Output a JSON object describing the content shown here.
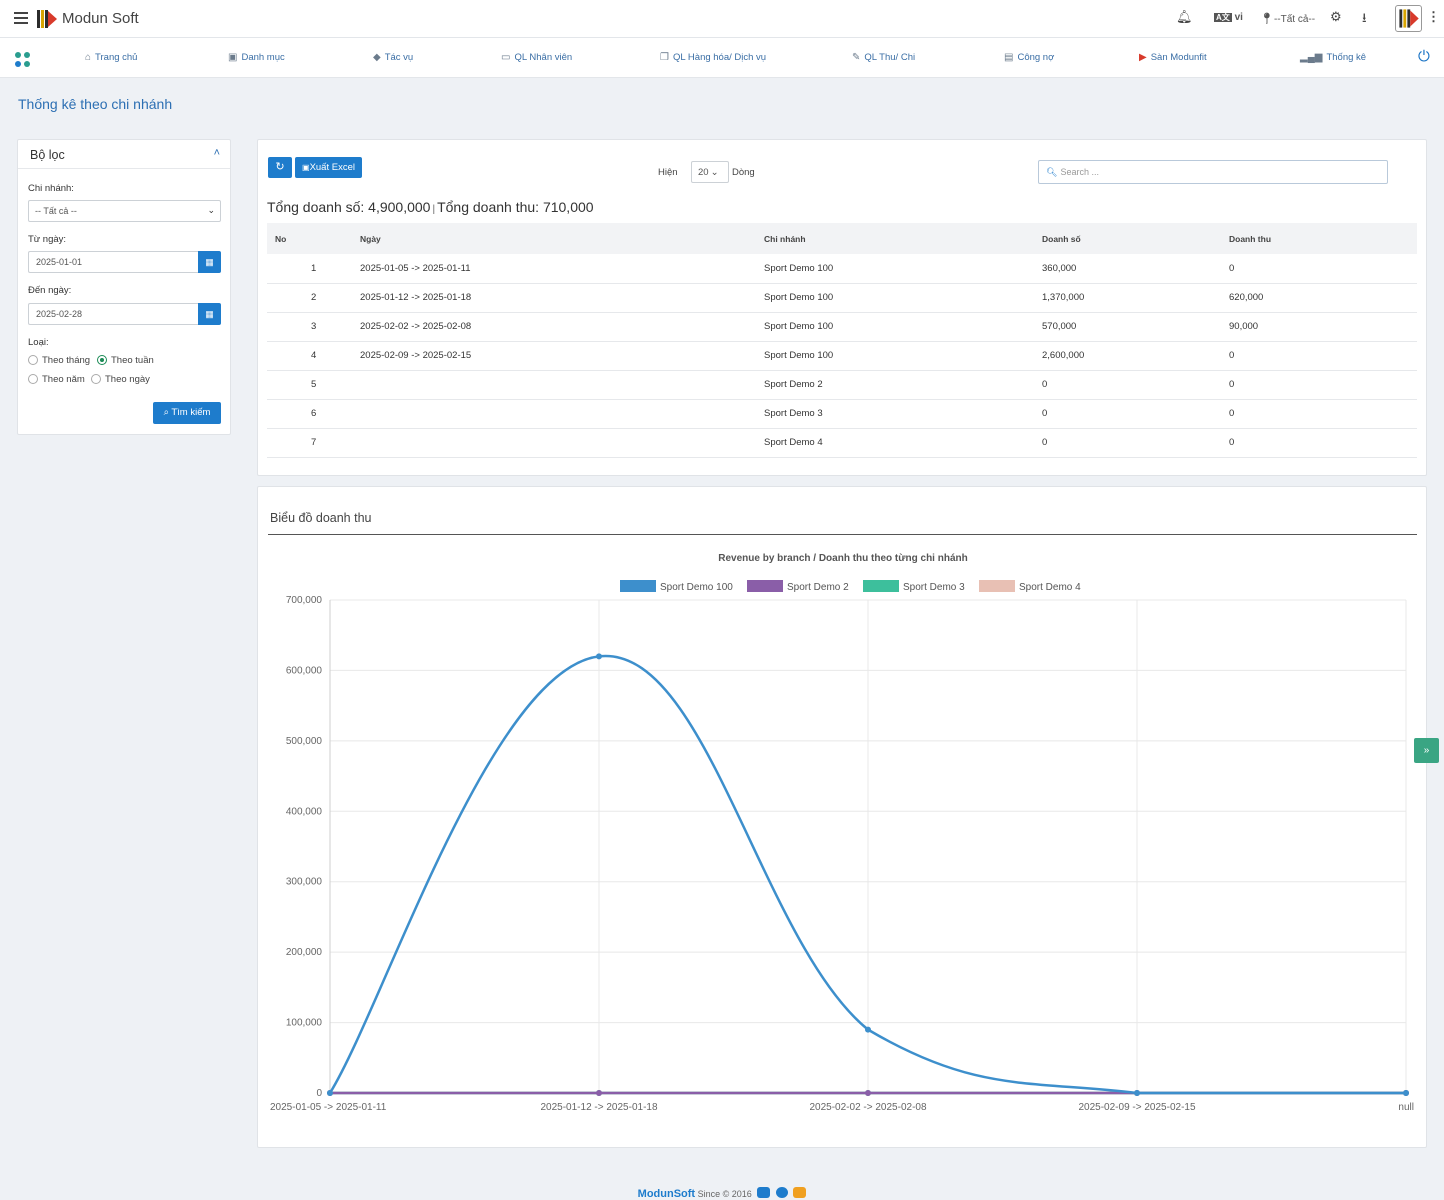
{
  "app": {
    "brand": "Modun Soft"
  },
  "topbar": {
    "lang": "vi",
    "location": "--Tất cả--"
  },
  "nav": [
    {
      "icon": "home-icon",
      "label": "Trang chủ"
    },
    {
      "icon": "cube-icon",
      "label": "Danh mục"
    },
    {
      "icon": "tag-icon",
      "label": "Tác vụ"
    },
    {
      "icon": "monitor-icon",
      "label": "QL Nhân viên"
    },
    {
      "icon": "copy-icon",
      "label": "QL Hàng hóa/ Dịch vụ"
    },
    {
      "icon": "edit-icon",
      "label": "QL Thu/ Chi"
    },
    {
      "icon": "money-icon",
      "label": "Công nợ"
    },
    {
      "icon": "modunfit-icon",
      "label": "Sàn Modunfit"
    },
    {
      "icon": "signal-icon",
      "label": "Thống kê"
    }
  ],
  "page": {
    "title": "Thống kê theo chi nhánh"
  },
  "filter": {
    "title": "Bộ lọc",
    "branch_label": "Chi nhánh:",
    "branch_value": "-- Tất cả --",
    "from_label": "Từ ngày:",
    "from_value": "2025-01-01",
    "to_label": "Đến ngày:",
    "to_value": "2025-02-28",
    "type_label": "Loại:",
    "types": [
      "Theo tháng",
      "Theo tuần",
      "Theo năm",
      "Theo ngày"
    ],
    "selected_type": "Theo tuần",
    "search_label": "Tìm kiếm"
  },
  "table": {
    "excel_label": "Xuất Excel",
    "show_label": "Hiện",
    "page_size": "20",
    "rows_label": "Dòng",
    "search_placeholder": "Search ...",
    "total_sales_text": "Tổng doanh số: 4,900,000",
    "total_revenue_text": "Tổng doanh thu: 710,000",
    "headers": [
      "No",
      "Ngày",
      "Chi nhánh",
      "Doanh số",
      "Doanh thu"
    ],
    "rows": [
      [
        "1",
        "2025-01-05 -> 2025-01-11",
        "Sport Demo 100",
        "360,000",
        "0"
      ],
      [
        "2",
        "2025-01-12 -> 2025-01-18",
        "Sport Demo 100",
        "1,370,000",
        "620,000"
      ],
      [
        "3",
        "2025-02-02 -> 2025-02-08",
        "Sport Demo 100",
        "570,000",
        "90,000"
      ],
      [
        "4",
        "2025-02-09 -> 2025-02-15",
        "Sport Demo 100",
        "2,600,000",
        "0"
      ],
      [
        "5",
        "",
        "Sport Demo 2",
        "0",
        "0"
      ],
      [
        "6",
        "",
        "Sport Demo 3",
        "0",
        "0"
      ],
      [
        "7",
        "",
        "Sport Demo 4",
        "0",
        "0"
      ]
    ]
  },
  "chart_panel": {
    "heading": "Biểu đồ doanh thu"
  },
  "chart_data": {
    "type": "line",
    "title": "Revenue by branch / Doanh thu theo từng chi nhánh",
    "xlabel": "",
    "ylabel": "",
    "categories": [
      "2025-01-05 -> 2025-01-11",
      "2025-01-12 -> 2025-01-18",
      "2025-02-02 -> 2025-02-08",
      "2025-02-09 -> 2025-02-15",
      "null"
    ],
    "ylim": [
      0,
      700000
    ],
    "yticks": [
      "0",
      "100,000",
      "200,000",
      "300,000",
      "400,000",
      "500,000",
      "600,000",
      "700,000"
    ],
    "grid": true,
    "legend_position": "top",
    "series": [
      {
        "name": "Sport Demo 100",
        "color": "#3d8fcc",
        "values": [
          0,
          620000,
          90000,
          0,
          0
        ]
      },
      {
        "name": "Sport Demo 2",
        "color": "#8a5ea8",
        "values": [
          0,
          0,
          0,
          0,
          0
        ]
      },
      {
        "name": "Sport Demo 3",
        "color": "#3dbf9c",
        "values": [
          0,
          0,
          0,
          0,
          0
        ]
      },
      {
        "name": "Sport Demo 4",
        "color": "#e8c0b4",
        "values": [
          0,
          0,
          0,
          0,
          0
        ]
      }
    ]
  },
  "footer": {
    "brand": "ModunSoft",
    "since": "Since © 2016"
  }
}
